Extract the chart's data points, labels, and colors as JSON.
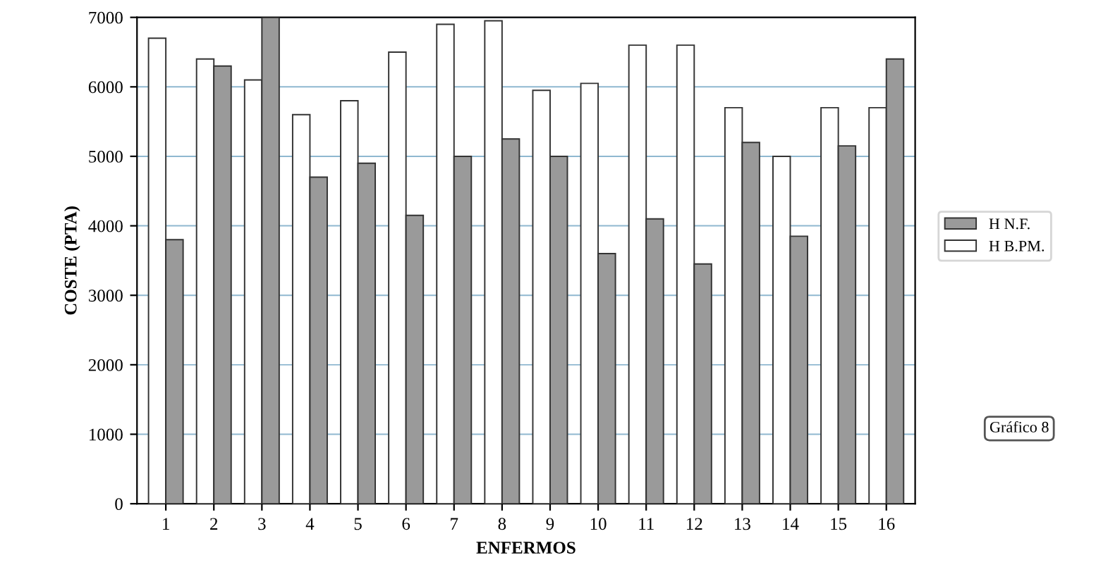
{
  "chart_data": {
    "type": "bar",
    "xlabel": "ENFERMOS",
    "ylabel": "COSTE (PTA)",
    "categories": [
      "1",
      "2",
      "3",
      "4",
      "5",
      "6",
      "7",
      "8",
      "9",
      "10",
      "11",
      "12",
      "13",
      "14",
      "15",
      "16"
    ],
    "series": [
      {
        "name": "H N.F.",
        "color": "#9a9a9a",
        "values": [
          3800,
          6300,
          7000,
          4700,
          4900,
          4150,
          5000,
          5250,
          5000,
          3600,
          4100,
          3450,
          5200,
          3850,
          5150,
          6400
        ]
      },
      {
        "name": "H B.PM.",
        "color": "#ffffff",
        "values": [
          6700,
          6400,
          6100,
          5600,
          5800,
          6500,
          6900,
          6950,
          5950,
          6050,
          6600,
          6600,
          5700,
          5000,
          5700,
          5700
        ]
      }
    ],
    "ylim": [
      0,
      7000
    ],
    "yticks": [
      0,
      1000,
      2000,
      3000,
      4000,
      5000,
      6000,
      7000
    ],
    "grid": "y",
    "legend": "right",
    "annotations": [
      "Gráfico 8"
    ]
  }
}
